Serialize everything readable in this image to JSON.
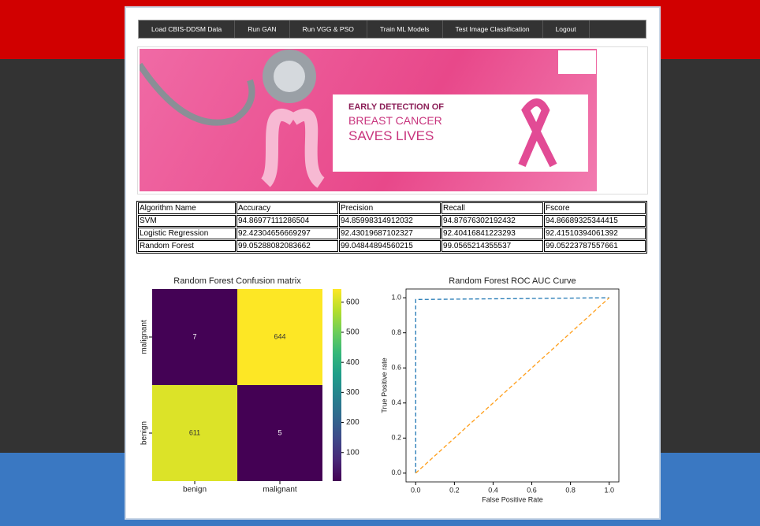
{
  "nav": [
    "Load CBIS-DDSM Data",
    "Run GAN",
    "Run VGG & PSO",
    "Train ML Models",
    "Test Image Classification",
    "Logout"
  ],
  "banner": {
    "line1": "EARLY DETECTION OF",
    "line2": "BREAST CANCER",
    "line3": "SAVES LIVES"
  },
  "table": {
    "header": [
      "Algorithm Name",
      "Accuracy",
      "Precision",
      "Recall",
      "Fscore"
    ],
    "rows": [
      [
        "SVM",
        "94.86977111286504",
        "94.85998314912032",
        "94.87676302192432",
        "94.86689325344415"
      ],
      [
        "Logistic Regression",
        "92.42304656669297",
        "92.43019687102327",
        "92.40416841223293",
        "92.41510394061392"
      ],
      [
        "Random Forest",
        "99.05288082083662",
        "99.04844894560215",
        "99.0565214355537",
        "99.05223787557661"
      ]
    ]
  },
  "chart_data": [
    {
      "type": "heatmap",
      "title": "Random Forest Confusion matrix",
      "colormap": "viridis",
      "x_categories": [
        "benign",
        "malignant"
      ],
      "y_categories": [
        "malignant",
        "benign"
      ],
      "values": [
        [
          7,
          644
        ],
        [
          611,
          5
        ]
      ],
      "clim": [
        5,
        644
      ],
      "cticks": [
        100,
        200,
        300,
        400,
        500,
        600
      ]
    },
    {
      "type": "line",
      "title": "Random Forest ROC AUC Curve",
      "xlabel": "False Positive Rate",
      "ylabel": "True Positive rate",
      "series": [
        {
          "color": "#1f77b4",
          "linestyle": "dashed",
          "x": [
            0,
            0,
            1
          ],
          "y": [
            0,
            0.99,
            1
          ]
        },
        {
          "color": "#ff9f1c",
          "linestyle": "dashed",
          "x": [
            0,
            1
          ],
          "y": [
            0,
            1
          ]
        }
      ],
      "xlim": [
        -0.05,
        1.05
      ],
      "ylim": [
        -0.05,
        1.05
      ],
      "xticks": [
        {
          "value": 0,
          "label": "0.0"
        },
        0.2,
        0.4,
        0.6,
        0.8,
        {
          "value": 1,
          "label": "1.0"
        }
      ],
      "yticks": [
        {
          "value": 0,
          "label": "0.0"
        },
        0.2,
        0.4,
        0.6,
        0.8,
        {
          "value": 1,
          "label": "1.0"
        }
      ]
    }
  ]
}
